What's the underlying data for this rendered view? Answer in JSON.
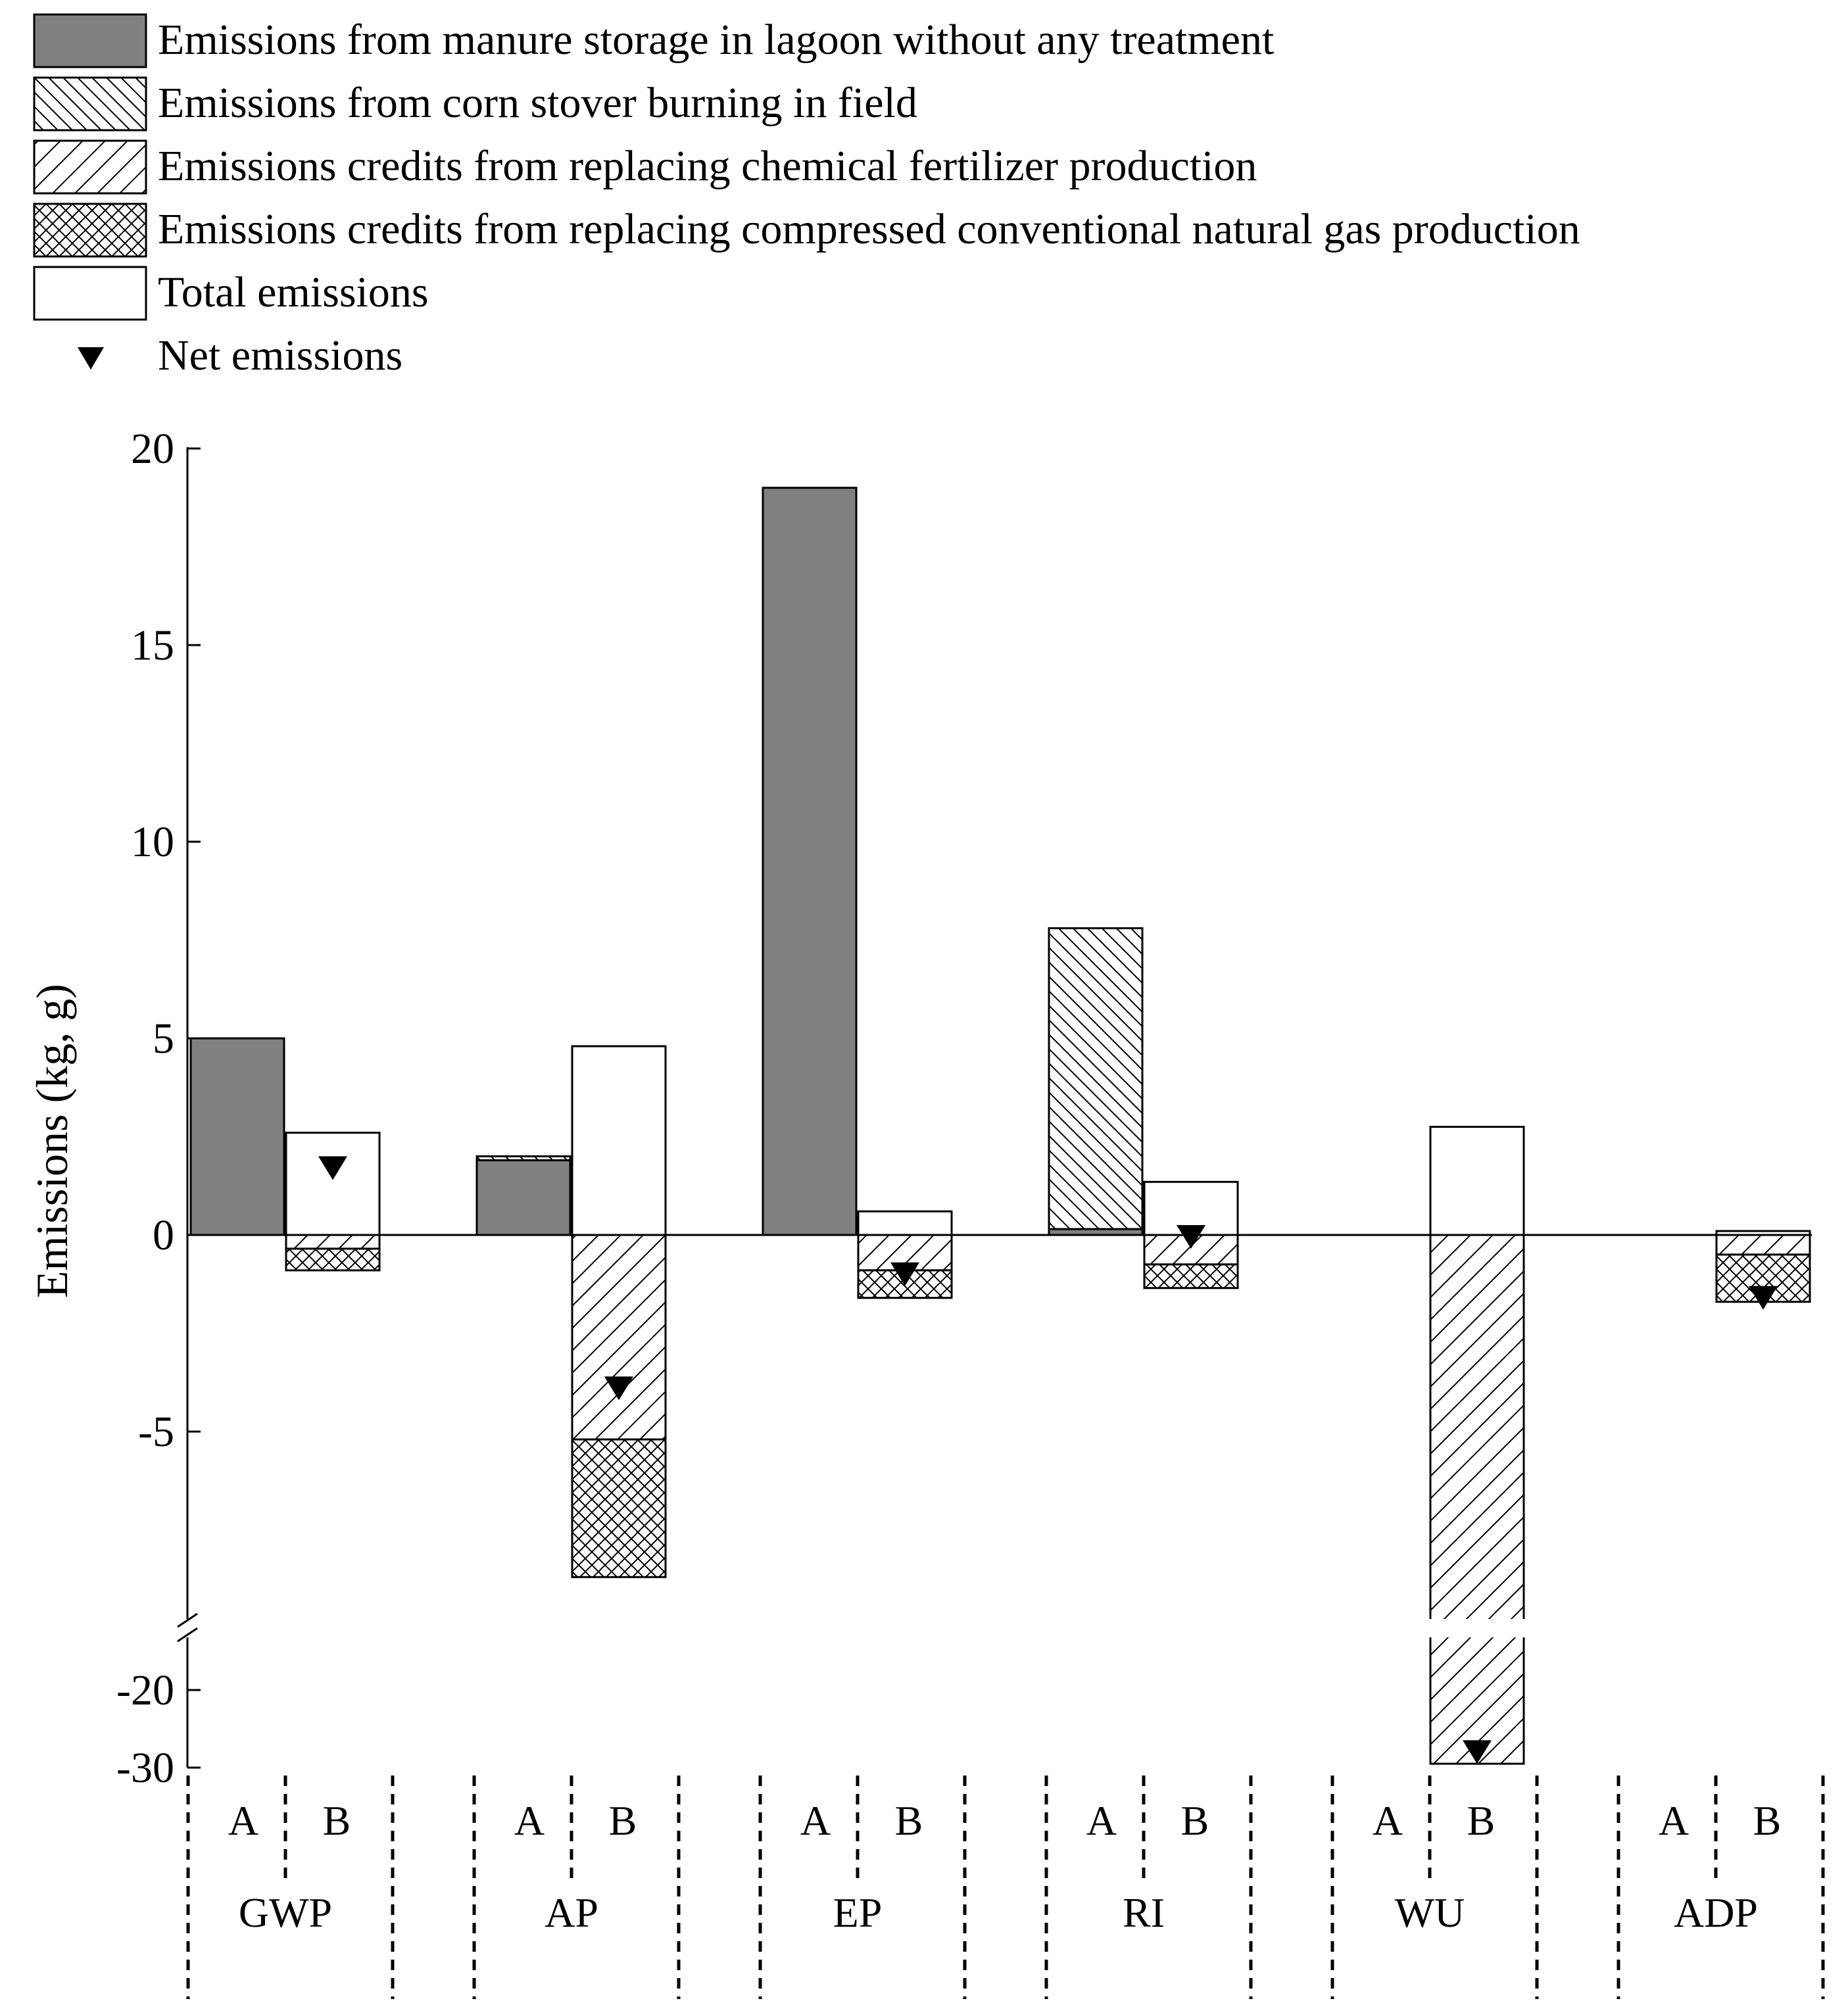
{
  "colors": {
    "manure_fill": "#808080",
    "stroke": "#000000",
    "background": "#ffffff"
  },
  "legend": [
    {
      "key": "manure",
      "label": "Emissions from manure storage in lagoon without any treatment",
      "pattern": "solid-gray"
    },
    {
      "key": "stover",
      "label": "Emissions from corn stover burning in field",
      "pattern": "back-diagonal"
    },
    {
      "key": "fertilizer",
      "label": "Emissions credits from replacing chemical fertilizer production",
      "pattern": "forward-diagonal"
    },
    {
      "key": "gas",
      "label": "Emissions credits from replacing compressed conventional natural gas production",
      "pattern": "crosshatch"
    },
    {
      "key": "total",
      "label": "Total emissions",
      "pattern": "white"
    },
    {
      "key": "net",
      "label": "Net emissions",
      "pattern": "triangle-marker"
    }
  ],
  "chart_data": {
    "type": "bar",
    "title": "",
    "xlabel": "",
    "ylabel": "Emissions (kg, g)",
    "y_break": {
      "lower_segment": [
        -30,
        -20
      ],
      "upper_segment": [
        -10,
        20
      ],
      "note": "axis broken below about -10"
    },
    "yticks": [
      "20",
      "15",
      "10",
      "5",
      "0",
      "-5",
      "-20",
      "-30"
    ],
    "grid": false,
    "legend_position": "top-left",
    "categories": [
      "GWP",
      "AP",
      "EP",
      "RI",
      "WU",
      "ADP"
    ],
    "scenario_labels": {
      "A": "A",
      "B": "B"
    },
    "bars": [
      {
        "category": "GWP",
        "scenario": "A",
        "segments": [
          {
            "series": "manure",
            "from": 0,
            "to": 5.0
          }
        ]
      },
      {
        "category": "GWP",
        "scenario": "B",
        "segments": [
          {
            "series": "total",
            "from": 0,
            "to": 2.6
          },
          {
            "series": "fertilizer",
            "from": 0,
            "to": -0.35
          },
          {
            "series": "gas",
            "from": -0.35,
            "to": -0.9
          }
        ],
        "net": 1.7
      },
      {
        "category": "AP",
        "scenario": "A",
        "segments": [
          {
            "series": "manure",
            "from": 0,
            "to": 1.9
          },
          {
            "series": "stover",
            "from": 1.9,
            "to": 2.0
          }
        ]
      },
      {
        "category": "AP",
        "scenario": "B",
        "segments": [
          {
            "series": "total",
            "from": 0,
            "to": 4.8
          },
          {
            "series": "fertilizer",
            "from": 0,
            "to": -5.2
          },
          {
            "series": "gas",
            "from": -5.2,
            "to": -8.7
          }
        ],
        "net": -3.9
      },
      {
        "category": "EP",
        "scenario": "A",
        "segments": [
          {
            "series": "manure",
            "from": 0,
            "to": 19.0
          }
        ]
      },
      {
        "category": "EP",
        "scenario": "B",
        "segments": [
          {
            "series": "total",
            "from": 0,
            "to": 0.6
          },
          {
            "series": "fertilizer",
            "from": 0,
            "to": -0.9
          },
          {
            "series": "gas",
            "from": -0.9,
            "to": -1.6
          }
        ],
        "net": -1.0
      },
      {
        "category": "RI",
        "scenario": "A",
        "segments": [
          {
            "series": "manure",
            "from": 0,
            "to": 0.15
          },
          {
            "series": "stover",
            "from": 0.15,
            "to": 7.8
          }
        ]
      },
      {
        "category": "RI",
        "scenario": "B",
        "segments": [
          {
            "series": "total",
            "from": 0,
            "to": 1.35
          },
          {
            "series": "fertilizer",
            "from": 0,
            "to": -0.75
          },
          {
            "series": "gas",
            "from": -0.75,
            "to": -1.35
          }
        ],
        "net": -0.05
      },
      {
        "category": "WU",
        "scenario": "B",
        "segments": [
          {
            "series": "total",
            "from": 0,
            "to": 2.75
          },
          {
            "series": "fertilizer",
            "from": 0,
            "to": -29.5
          }
        ],
        "net": -28.0
      },
      {
        "category": "ADP",
        "scenario": "A",
        "segments": []
      },
      {
        "category": "ADP",
        "scenario": "B",
        "segments": [
          {
            "series": "total",
            "from": 0,
            "to": 0.1
          },
          {
            "series": "fertilizer",
            "from": 0,
            "to": -0.5
          },
          {
            "series": "gas",
            "from": -0.5,
            "to": -1.7
          }
        ],
        "net": -1.6
      }
    ]
  }
}
